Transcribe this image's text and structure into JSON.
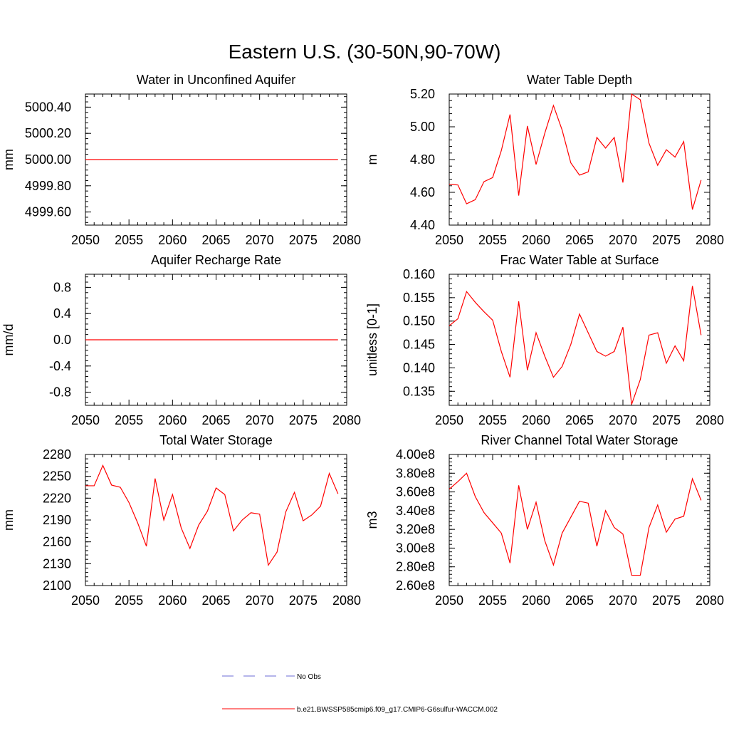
{
  "figure": {
    "title": "Eastern U.S. (30-50N,90-70W)"
  },
  "legend": {
    "entries": [
      {
        "label": "No Obs",
        "style": "dashed",
        "color": "#6b6bd6"
      },
      {
        "label": "b.e21.BWSSP585cmip6.f09_g17.CMIP6-G6sulfur-WACCM.002",
        "style": "solid",
        "color": "#ff0000"
      }
    ]
  },
  "chart_data": [
    {
      "type": "line",
      "title": "Water in Unconfined Aquifer",
      "ylabel": "mm",
      "xlim": [
        2050,
        2080
      ],
      "ylim": [
        4999.5,
        5000.5
      ],
      "xticks": [
        2050,
        2055,
        2060,
        2065,
        2070,
        2075,
        2080
      ],
      "yticks": [
        4999.6,
        4999.8,
        5000.0,
        5000.2,
        5000.4
      ],
      "ytick_labels": [
        "4999.60",
        "4999.80",
        "5000.00",
        "5000.20",
        "5000.40"
      ],
      "grid": false,
      "series": [
        {
          "color": "#ff0000",
          "x": [
            2050,
            2051,
            2052,
            2053,
            2054,
            2055,
            2056,
            2057,
            2058,
            2059,
            2060,
            2061,
            2062,
            2063,
            2064,
            2065,
            2066,
            2067,
            2068,
            2069,
            2070,
            2071,
            2072,
            2073,
            2074,
            2075,
            2076,
            2077,
            2078,
            2079
          ],
          "y": [
            5000,
            5000,
            5000,
            5000,
            5000,
            5000,
            5000,
            5000,
            5000,
            5000,
            5000,
            5000,
            5000,
            5000,
            5000,
            5000,
            5000,
            5000,
            5000,
            5000,
            5000,
            5000,
            5000,
            5000,
            5000,
            5000,
            5000,
            5000,
            5000,
            5000
          ]
        }
      ]
    },
    {
      "type": "line",
      "title": "Water Table Depth",
      "ylabel": "m",
      "xlim": [
        2050,
        2080
      ],
      "ylim": [
        4.4,
        5.2
      ],
      "xticks": [
        2050,
        2055,
        2060,
        2065,
        2070,
        2075,
        2080
      ],
      "yticks": [
        4.4,
        4.6,
        4.8,
        5.0,
        5.2
      ],
      "ytick_labels": [
        "4.40",
        "4.60",
        "4.80",
        "5.00",
        "5.20"
      ],
      "grid": false,
      "series": [
        {
          "color": "#ff0000",
          "x": [
            2050,
            2051,
            2052,
            2053,
            2054,
            2055,
            2056,
            2057,
            2058,
            2059,
            2060,
            2061,
            2062,
            2063,
            2064,
            2065,
            2066,
            2067,
            2068,
            2069,
            2070,
            2071,
            2072,
            2073,
            2074,
            2075,
            2076,
            2077,
            2078,
            2079
          ],
          "y": [
            4.65,
            4.645,
            4.53,
            4.555,
            4.665,
            4.69,
            4.855,
            5.075,
            4.58,
            5.005,
            4.77,
            4.96,
            5.13,
            4.98,
            4.78,
            4.705,
            4.725,
            4.935,
            4.87,
            4.935,
            4.66,
            5.2,
            5.165,
            4.9,
            4.765,
            4.86,
            4.815,
            4.91,
            4.495,
            4.675
          ]
        }
      ]
    },
    {
      "type": "line",
      "title": "Aquifer Recharge Rate",
      "ylabel": "mm/d",
      "xlim": [
        2050,
        2080
      ],
      "ylim": [
        -1.0,
        1.0
      ],
      "xticks": [
        2050,
        2055,
        2060,
        2065,
        2070,
        2075,
        2080
      ],
      "yticks": [
        -0.8,
        -0.4,
        0.0,
        0.4,
        0.8
      ],
      "ytick_labels": [
        "-0.8",
        "-0.4",
        "0.0",
        "0.4",
        "0.8"
      ],
      "grid": false,
      "series": [
        {
          "color": "#ff0000",
          "x": [
            2050,
            2051,
            2052,
            2053,
            2054,
            2055,
            2056,
            2057,
            2058,
            2059,
            2060,
            2061,
            2062,
            2063,
            2064,
            2065,
            2066,
            2067,
            2068,
            2069,
            2070,
            2071,
            2072,
            2073,
            2074,
            2075,
            2076,
            2077,
            2078,
            2079
          ],
          "y": [
            0,
            0,
            0,
            0,
            0,
            0,
            0,
            0,
            0,
            0,
            0,
            0,
            0,
            0,
            0,
            0,
            0,
            0,
            0,
            0,
            0,
            0,
            0,
            0,
            0,
            0,
            0,
            0,
            0,
            0
          ]
        }
      ]
    },
    {
      "type": "line",
      "title": "Frac Water Table at Surface",
      "ylabel": "unitless [0-1]",
      "xlim": [
        2050,
        2080
      ],
      "ylim": [
        0.132,
        0.16
      ],
      "xticks": [
        2050,
        2055,
        2060,
        2065,
        2070,
        2075,
        2080
      ],
      "yticks": [
        0.135,
        0.14,
        0.145,
        0.15,
        0.155,
        0.16
      ],
      "ytick_labels": [
        "0.135",
        "0.140",
        "0.145",
        "0.150",
        "0.155",
        "0.160"
      ],
      "grid": false,
      "series": [
        {
          "color": "#ff0000",
          "x": [
            2050,
            2051,
            2052,
            2053,
            2054,
            2055,
            2056,
            2057,
            2058,
            2059,
            2060,
            2061,
            2062,
            2063,
            2064,
            2065,
            2066,
            2067,
            2068,
            2069,
            2070,
            2071,
            2072,
            2073,
            2074,
            2075,
            2076,
            2077,
            2078,
            2079
          ],
          "y": [
            0.149,
            0.1505,
            0.1563,
            0.154,
            0.152,
            0.1502,
            0.1435,
            0.138,
            0.1542,
            0.1395,
            0.1475,
            0.1425,
            0.138,
            0.1403,
            0.145,
            0.1515,
            0.1475,
            0.1435,
            0.1425,
            0.1435,
            0.1487,
            0.1322,
            0.1375,
            0.147,
            0.1475,
            0.141,
            0.1447,
            0.1415,
            0.1575,
            0.147
          ]
        }
      ]
    },
    {
      "type": "line",
      "title": "Total Water Storage",
      "ylabel": "mm",
      "xlim": [
        2050,
        2080
      ],
      "ylim": [
        2100,
        2280
      ],
      "xticks": [
        2050,
        2055,
        2060,
        2065,
        2070,
        2075,
        2080
      ],
      "yticks": [
        2100,
        2130,
        2160,
        2190,
        2220,
        2250,
        2280
      ],
      "ytick_labels": [
        "2100",
        "2130",
        "2160",
        "2190",
        "2220",
        "2250",
        "2280"
      ],
      "grid": false,
      "series": [
        {
          "color": "#ff0000",
          "x": [
            2050,
            2051,
            2052,
            2053,
            2054,
            2055,
            2056,
            2057,
            2058,
            2059,
            2060,
            2061,
            2062,
            2063,
            2064,
            2065,
            2066,
            2067,
            2068,
            2069,
            2070,
            2071,
            2072,
            2073,
            2074,
            2075,
            2076,
            2077,
            2078,
            2079
          ],
          "y": [
            2237,
            2237,
            2265,
            2238,
            2235,
            2214,
            2186,
            2154,
            2247,
            2190,
            2225,
            2179,
            2151,
            2183,
            2202,
            2234,
            2225,
            2175,
            2190,
            2200,
            2198,
            2128,
            2146,
            2201,
            2228,
            2189,
            2197,
            2209,
            2254,
            2226
          ]
        }
      ]
    },
    {
      "type": "line",
      "title": "River Channel Total Water Storage",
      "ylabel": "m3",
      "xlim": [
        2050,
        2080
      ],
      "ylim": [
        260000000,
        400000000
      ],
      "xticks": [
        2050,
        2055,
        2060,
        2065,
        2070,
        2075,
        2080
      ],
      "yticks": [
        260000000,
        280000000,
        300000000,
        320000000,
        340000000,
        360000000,
        380000000,
        400000000
      ],
      "ytick_labels": [
        "2.60e8",
        "2.80e8",
        "3.00e8",
        "3.20e8",
        "3.40e8",
        "3.60e8",
        "3.80e8",
        "4.00e8"
      ],
      "grid": false,
      "series": [
        {
          "color": "#ff0000",
          "x": [
            2050,
            2051,
            2052,
            2053,
            2054,
            2055,
            2056,
            2057,
            2058,
            2059,
            2060,
            2061,
            2062,
            2063,
            2064,
            2065,
            2066,
            2067,
            2068,
            2069,
            2070,
            2071,
            2072,
            2073,
            2074,
            2075,
            2076,
            2077,
            2078,
            2079
          ],
          "y": [
            363000000,
            371000000,
            380000000,
            355000000,
            338000000,
            327000000,
            316000000,
            284000000,
            367000000,
            320000000,
            349000000,
            308000000,
            282000000,
            316000000,
            333000000,
            350000000,
            348000000,
            302000000,
            340000000,
            322000000,
            315000000,
            271000000,
            271000000,
            322000000,
            346000000,
            317000000,
            331000000,
            334000000,
            374000000,
            351000000
          ]
        }
      ]
    }
  ]
}
